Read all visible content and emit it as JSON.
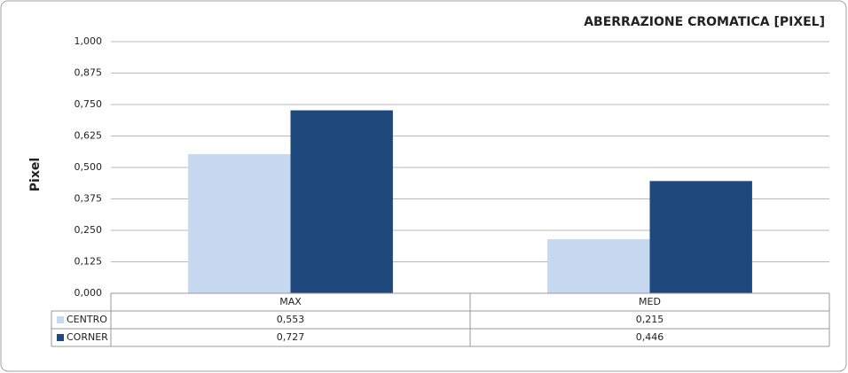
{
  "chart_data": {
    "type": "bar",
    "title": "ABERRAZIONE CROMATICA [PIXEL]",
    "y_label": "Pixel",
    "categories": [
      "MAX",
      "MED"
    ],
    "series": [
      {
        "name": "CENTRO",
        "color": "#c6d9f1",
        "values": [
          0.553,
          0.215
        ],
        "value_labels": [
          "0,553",
          "0,215"
        ]
      },
      {
        "name": "CORNER",
        "color": "#1f497d",
        "values": [
          0.727,
          0.446
        ],
        "value_labels": [
          "0,727",
          "0,446"
        ]
      }
    ],
    "ylim": [
      0,
      1
    ],
    "yticks": [
      {
        "value": 0,
        "label": "0,000"
      },
      {
        "value": 0.125,
        "label": "0,125"
      },
      {
        "value": 0.25,
        "label": "0,250"
      },
      {
        "value": 0.375,
        "label": "0,375"
      },
      {
        "value": 0.5,
        "label": "0,500"
      },
      {
        "value": 0.625,
        "label": "0,625"
      },
      {
        "value": 0.75,
        "label": "0,750"
      },
      {
        "value": 0.875,
        "label": "0,875"
      },
      {
        "value": 1,
        "label": "1,000"
      }
    ],
    "grid": true,
    "legend": "table"
  }
}
